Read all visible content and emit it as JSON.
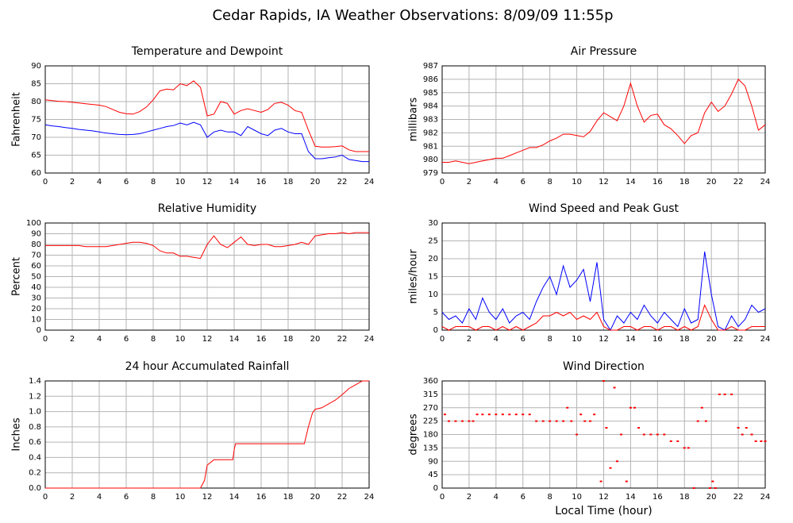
{
  "title": "Cedar Rapids, IA Weather Observations: 8/09/09 11:55p",
  "chart_data": [
    {
      "type": "line",
      "title": "Temperature and Dewpoint",
      "ylabel": "Fahrenheit",
      "x": [
        0,
        0.5,
        1,
        1.5,
        2,
        2.5,
        3,
        3.5,
        4,
        4.5,
        5,
        5.5,
        6,
        6.5,
        7,
        7.5,
        8,
        8.5,
        9,
        9.5,
        10,
        10.5,
        11,
        11.5,
        12,
        12.5,
        13,
        13.5,
        14,
        14.5,
        15,
        15.5,
        16,
        16.5,
        17,
        17.5,
        18,
        18.5,
        19,
        19.5,
        20,
        20.5,
        21,
        21.5,
        22,
        22.5,
        23,
        23.5,
        24
      ],
      "series": [
        {
          "color": "#ff0000",
          "values": [
            80.5,
            80.3,
            80.1,
            80,
            79.8,
            79.6,
            79.4,
            79.2,
            79,
            78.6,
            77.8,
            77,
            76.6,
            76.5,
            77.2,
            78.5,
            80.5,
            83,
            83.5,
            83.3,
            85,
            84.5,
            85.8,
            84,
            76,
            76.5,
            80,
            79.5,
            76.5,
            77.5,
            78,
            77.5,
            77,
            77.8,
            79.5,
            79.8,
            79,
            77.5,
            77,
            72,
            67.5,
            67.3,
            67.3,
            67.4,
            67.6,
            66.5,
            66,
            66,
            66
          ]
        },
        {
          "color": "#0000ff",
          "values": [
            73.5,
            73.2,
            73,
            72.7,
            72.5,
            72.2,
            72,
            71.8,
            71.5,
            71.2,
            71,
            70.8,
            70.7,
            70.8,
            71,
            71.5,
            72,
            72.5,
            73,
            73.3,
            74,
            73.5,
            74.2,
            73.5,
            70,
            71.5,
            72,
            71.5,
            71.5,
            70.5,
            73,
            72,
            71,
            70.5,
            72,
            72.5,
            71.5,
            71,
            71,
            66,
            64,
            64,
            64.3,
            64.5,
            65,
            63.8,
            63.5,
            63.2,
            63.2
          ]
        }
      ],
      "xlim": [
        0,
        24
      ],
      "xticks": [
        0,
        2,
        4,
        6,
        8,
        10,
        12,
        14,
        16,
        18,
        20,
        22,
        24
      ],
      "ylim": [
        60,
        90
      ],
      "yticks": [
        60,
        65,
        70,
        75,
        80,
        85,
        90
      ],
      "grid": true
    },
    {
      "type": "line",
      "title": "Air Pressure",
      "ylabel": "millibars",
      "x": [
        0,
        0.5,
        1,
        1.5,
        2,
        2.5,
        3,
        3.5,
        4,
        4.5,
        5,
        5.5,
        6,
        6.5,
        7,
        7.5,
        8,
        8.5,
        9,
        9.5,
        10,
        10.5,
        11,
        11.5,
        12,
        12.5,
        13,
        13.5,
        14,
        14.5,
        15,
        15.5,
        16,
        16.5,
        17,
        17.5,
        18,
        18.5,
        19,
        19.5,
        20,
        20.5,
        21,
        21.5,
        22,
        22.5,
        23,
        23.5,
        24
      ],
      "series": [
        {
          "color": "#ff0000",
          "values": [
            979.8,
            979.8,
            979.9,
            979.8,
            979.7,
            979.8,
            979.9,
            980,
            980.1,
            980.1,
            980.3,
            980.5,
            980.7,
            980.9,
            980.9,
            981.1,
            981.4,
            981.6,
            981.9,
            981.9,
            981.8,
            981.7,
            982.1,
            982.9,
            983.5,
            983.2,
            982.9,
            984,
            985.7,
            984,
            982.8,
            983.3,
            983.4,
            982.6,
            982.3,
            981.8,
            981.2,
            981.8,
            982,
            983.5,
            984.3,
            983.6,
            984,
            984.9,
            986,
            985.5,
            984,
            982.2,
            982.6
          ]
        }
      ],
      "xlim": [
        0,
        24
      ],
      "xticks": [
        0,
        2,
        4,
        6,
        8,
        10,
        12,
        14,
        16,
        18,
        20,
        22,
        24
      ],
      "ylim": [
        979,
        987
      ],
      "yticks": [
        979,
        980,
        981,
        982,
        983,
        984,
        985,
        986,
        987
      ],
      "grid": true
    },
    {
      "type": "line",
      "title": "Relative Humidity",
      "ylabel": "Percent",
      "x": [
        0,
        0.5,
        1,
        1.5,
        2,
        2.5,
        3,
        3.5,
        4,
        4.5,
        5,
        5.5,
        6,
        6.5,
        7,
        7.5,
        8,
        8.5,
        9,
        9.5,
        10,
        10.5,
        11,
        11.5,
        12,
        12.5,
        13,
        13.5,
        14,
        14.5,
        15,
        15.5,
        16,
        16.5,
        17,
        17.5,
        18,
        18.5,
        19,
        19.5,
        20,
        20.5,
        21,
        21.5,
        22,
        22.5,
        23,
        23.5,
        24
      ],
      "series": [
        {
          "color": "#ff0000",
          "values": [
            79,
            79,
            79,
            79,
            79,
            79,
            78,
            78,
            78,
            78,
            79,
            80,
            81,
            82,
            82,
            81,
            79,
            74,
            72,
            72,
            69,
            69,
            68,
            67,
            80,
            88,
            80,
            77,
            82,
            87,
            80,
            79,
            80,
            80,
            78,
            78,
            79,
            80,
            82,
            80,
            88,
            89,
            90,
            90,
            91,
            90,
            91,
            91,
            91
          ]
        }
      ],
      "xlim": [
        0,
        24
      ],
      "xticks": [
        0,
        2,
        4,
        6,
        8,
        10,
        12,
        14,
        16,
        18,
        20,
        22,
        24
      ],
      "ylim": [
        0,
        100
      ],
      "yticks": [
        0,
        10,
        20,
        30,
        40,
        50,
        60,
        70,
        80,
        90,
        100
      ],
      "grid": true
    },
    {
      "type": "line",
      "title": "Wind Speed and Peak Gust",
      "ylabel": "miles/hour",
      "x": [
        0,
        0.5,
        1,
        1.5,
        2,
        2.5,
        3,
        3.5,
        4,
        4.5,
        5,
        5.5,
        6,
        6.5,
        7,
        7.5,
        8,
        8.5,
        9,
        9.5,
        10,
        10.5,
        11,
        11.5,
        12,
        12.5,
        13,
        13.5,
        14,
        14.5,
        15,
        15.5,
        16,
        16.5,
        17,
        17.5,
        18,
        18.5,
        19,
        19.5,
        20,
        20.5,
        21,
        21.5,
        22,
        22.5,
        23,
        23.5,
        24
      ],
      "series": [
        {
          "color": "#0000ff",
          "values": [
            5,
            3,
            4,
            2,
            6,
            3,
            9,
            5,
            3,
            6,
            2,
            4,
            5,
            3,
            8,
            12,
            15,
            10,
            18,
            12,
            14,
            17,
            8,
            19,
            3,
            0,
            4,
            2,
            5,
            3,
            7,
            4,
            2,
            5,
            3,
            1,
            6,
            2,
            3,
            22,
            10,
            1,
            0,
            4,
            1,
            3,
            7,
            5,
            6
          ]
        },
        {
          "color": "#ff0000",
          "values": [
            1,
            0,
            1,
            1,
            1,
            0,
            1,
            1,
            0,
            1,
            0,
            1,
            0,
            1,
            2,
            4,
            4,
            5,
            4,
            5,
            3,
            4,
            3,
            5,
            1,
            0,
            0,
            1,
            1,
            0,
            1,
            1,
            0,
            1,
            1,
            0,
            1,
            0,
            1,
            7,
            3,
            0,
            0,
            1,
            0,
            0,
            1,
            1,
            1
          ]
        }
      ],
      "xlim": [
        0,
        24
      ],
      "xticks": [
        0,
        2,
        4,
        6,
        8,
        10,
        12,
        14,
        16,
        18,
        20,
        22,
        24
      ],
      "ylim": [
        0,
        30
      ],
      "yticks": [
        0,
        5,
        10,
        15,
        20,
        25,
        30
      ],
      "grid": true
    },
    {
      "type": "line",
      "title": "24 hour Accumulated Rainfall",
      "ylabel": "Inches",
      "x": [
        0,
        11.5,
        11.8,
        12,
        12.5,
        13.9,
        14,
        14.1,
        19.2,
        19.5,
        19.8,
        20,
        20.5,
        21,
        21.5,
        22,
        22.5,
        23,
        23.5,
        24
      ],
      "series": [
        {
          "color": "#ff0000",
          "values": [
            0,
            0,
            0.1,
            0.3,
            0.37,
            0.37,
            0.5,
            0.58,
            0.58,
            0.8,
            0.98,
            1.03,
            1.05,
            1.1,
            1.15,
            1.22,
            1.3,
            1.35,
            1.4,
            1.4
          ]
        }
      ],
      "xlim": [
        0,
        24
      ],
      "xticks": [
        0,
        2,
        4,
        6,
        8,
        10,
        12,
        14,
        16,
        18,
        20,
        22,
        24
      ],
      "ylim": [
        0,
        1.4
      ],
      "yticks": [
        {
          "value": 0,
          "label": "0.0"
        },
        0.2,
        0.4,
        0.6,
        0.8,
        {
          "value": 1,
          "label": "1.0"
        },
        1.2,
        1.4
      ],
      "grid": true
    },
    {
      "type": "scatter",
      "title": "Wind Direction",
      "ylabel": "degrees",
      "xlabel": "Local Time (hour)",
      "x": [
        0.2,
        0.5,
        1,
        1.5,
        2,
        2.3,
        2.6,
        3,
        3.5,
        4,
        4.5,
        5,
        5.5,
        6,
        6.5,
        7,
        7.5,
        8,
        8.5,
        9,
        9.3,
        9.6,
        10,
        10.3,
        10.6,
        11,
        11.3,
        11.8,
        12,
        12.2,
        12.5,
        12.8,
        13,
        13.3,
        13.7,
        14,
        14.3,
        14.6,
        15,
        15.5,
        16,
        16.5,
        17,
        17.5,
        18,
        18.3,
        18.7,
        19,
        19.3,
        19.6,
        19.9,
        20.1,
        20.3,
        20.6,
        21,
        21.5,
        22,
        22.3,
        22.6,
        23,
        23.3,
        23.7,
        24
      ],
      "series": [
        {
          "color": "#ff0000",
          "values": [
            247.5,
            225,
            225,
            225,
            225,
            225,
            247.5,
            247.5,
            247.5,
            247.5,
            247.5,
            247.5,
            247.5,
            247.5,
            247.5,
            225,
            225,
            225,
            225,
            225,
            270,
            225,
            180,
            247.5,
            225,
            225,
            247.5,
            22.5,
            360,
            202.5,
            67.5,
            337.5,
            90,
            180,
            22.5,
            270,
            270,
            202.5,
            180,
            180,
            180,
            180,
            157.5,
            157.5,
            135,
            135,
            0,
            225,
            270,
            225,
            0,
            22.5,
            0,
            315,
            315,
            315,
            202.5,
            180,
            202.5,
            180,
            157.5,
            157.5,
            157.5
          ]
        }
      ],
      "xlim": [
        0,
        24
      ],
      "xticks": [
        0,
        2,
        4,
        6,
        8,
        10,
        12,
        14,
        16,
        18,
        20,
        22,
        24
      ],
      "ylim": [
        0,
        360
      ],
      "yticks": [
        0,
        45,
        90,
        135,
        180,
        225,
        270,
        315,
        360
      ],
      "grid": true
    }
  ]
}
